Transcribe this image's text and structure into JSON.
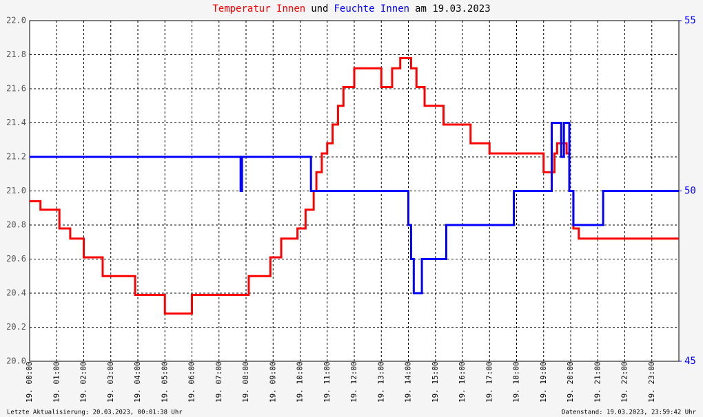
{
  "chart_data": {
    "type": "line",
    "step": "post",
    "title": [
      {
        "text": "Temperatur Innen",
        "color": "#ff0000"
      },
      {
        "text": "und",
        "color": "#000000"
      },
      {
        "text": "Feuchte Innen",
        "color": "#0000ff"
      },
      {
        "text": "am 19.03.2023",
        "color": "#000000"
      }
    ],
    "xlim": [
      0,
      24
    ],
    "xticks": [
      {
        "value": 0,
        "label": "19. 00:00"
      },
      {
        "value": 1,
        "label": "19. 01:00"
      },
      {
        "value": 2,
        "label": "19. 02:00"
      },
      {
        "value": 3,
        "label": "19. 03:00"
      },
      {
        "value": 4,
        "label": "19. 04:00"
      },
      {
        "value": 5,
        "label": "19. 05:00"
      },
      {
        "value": 6,
        "label": "19. 06:00"
      },
      {
        "value": 7,
        "label": "19. 07:00"
      },
      {
        "value": 8,
        "label": "19. 08:00"
      },
      {
        "value": 9,
        "label": "19. 09:00"
      },
      {
        "value": 10,
        "label": "19. 10:00"
      },
      {
        "value": 11,
        "label": "19. 11:00"
      },
      {
        "value": 12,
        "label": "19. 12:00"
      },
      {
        "value": 13,
        "label": "19. 13:00"
      },
      {
        "value": 14,
        "label": "19. 14:00"
      },
      {
        "value": 15,
        "label": "19. 15:00"
      },
      {
        "value": 16,
        "label": "19. 16:00"
      },
      {
        "value": 17,
        "label": "19. 17:00"
      },
      {
        "value": 18,
        "label": "19. 18:00"
      },
      {
        "value": 19,
        "label": "19. 19:00"
      },
      {
        "value": 20,
        "label": "19. 20:00"
      },
      {
        "value": 21,
        "label": "19. 21:00"
      },
      {
        "value": 22,
        "label": "19. 22:00"
      },
      {
        "value": 23,
        "label": "19. 23:00"
      }
    ],
    "ylim": [
      20.0,
      22.0
    ],
    "yticks": [
      {
        "value": 20.0,
        "label": "20.0"
      },
      20.2,
      20.4,
      20.6,
      20.8,
      {
        "value": 21.0,
        "label": "21.0"
      },
      21.2,
      21.4,
      21.6,
      21.8,
      {
        "value": 22.0,
        "label": "22.0"
      }
    ],
    "y2lim": [
      45,
      55
    ],
    "y2ticks": [
      45,
      50,
      55
    ],
    "grid": true,
    "series": [
      {
        "name": "Temperatur Innen",
        "color": "#ff0000",
        "x": [
          0,
          0.4,
          1.1,
          1.5,
          2.0,
          2.7,
          3.9,
          5.0,
          6.0,
          8.1,
          8.9,
          9.3,
          9.9,
          10.2,
          10.5,
          10.6,
          10.8,
          11.0,
          11.2,
          11.4,
          11.6,
          12.0,
          13.0,
          13.4,
          13.7,
          14.1,
          14.3,
          14.6,
          15.3,
          16.3,
          17.0,
          19.0,
          19.4,
          19.5,
          19.85,
          19.95,
          20.1,
          20.3
        ],
        "values": [
          20.94,
          20.89,
          20.78,
          20.72,
          20.61,
          20.5,
          20.39,
          20.28,
          20.39,
          20.5,
          20.61,
          20.72,
          20.78,
          20.89,
          21.0,
          21.11,
          21.22,
          21.28,
          21.39,
          21.5,
          21.61,
          21.72,
          21.61,
          21.72,
          21.78,
          21.72,
          21.61,
          21.5,
          21.39,
          21.28,
          21.22,
          21.11,
          21.22,
          21.28,
          21.22,
          21.0,
          20.78,
          20.72
        ]
      },
      {
        "name": "Feuchte Innen",
        "color": "#0000ff",
        "axis": "y2",
        "x": [
          0,
          7.8,
          7.85,
          10.4,
          14.0,
          14.1,
          14.2,
          14.5,
          15.4,
          17.9,
          19.3,
          19.65,
          19.75,
          19.95,
          20.1,
          21.2
        ],
        "values": [
          51,
          50,
          51,
          50,
          49,
          48,
          47,
          48,
          49,
          50,
          52,
          51,
          52,
          50,
          49,
          50
        ]
      }
    ],
    "footer_left": "Letzte Aktualisierung: 20.03.2023, 00:01:38 Uhr",
    "footer_right": "Datenstand: 19.03.2023, 23:59:42 Uhr"
  }
}
